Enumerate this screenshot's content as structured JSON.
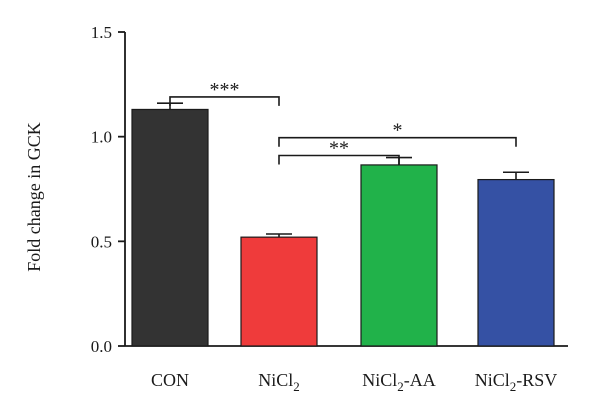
{
  "chart_data": {
    "type": "bar",
    "categories": [
      "CON",
      "NiCl2",
      "NiCl2-AA",
      "NiCl2-RSV"
    ],
    "category_display": [
      {
        "base": "CON",
        "sub": "",
        "suffix": ""
      },
      {
        "base": "NiCl",
        "sub": "2",
        "suffix": ""
      },
      {
        "base": "NiCl",
        "sub": "2",
        "suffix": "-AA"
      },
      {
        "base": "NiCl",
        "sub": "2",
        "suffix": "-RSV"
      }
    ],
    "values": [
      1.13,
      0.52,
      0.865,
      0.795
    ],
    "errors": [
      0.03,
      0.015,
      0.035,
      0.035
    ],
    "colors": [
      "#333333",
      "#ef3b3b",
      "#21b24a",
      "#3551a4"
    ],
    "ylabel": "Fold change in GCK",
    "xlabel": "",
    "title": "",
    "ylim": [
      0,
      1.5
    ],
    "yticks": [
      0.0,
      0.5,
      1.0,
      1.5
    ],
    "ytick_labels": [
      "0.0",
      "0.5",
      "1.0",
      "1.5"
    ],
    "grid": false,
    "significance": [
      {
        "from": 0,
        "to": 1,
        "label": "***",
        "y": 1.19
      },
      {
        "from": 1,
        "to": 2,
        "label": "**",
        "y": 0.91
      },
      {
        "from": 1,
        "to": 3,
        "label": "*",
        "y": 0.995
      }
    ]
  }
}
